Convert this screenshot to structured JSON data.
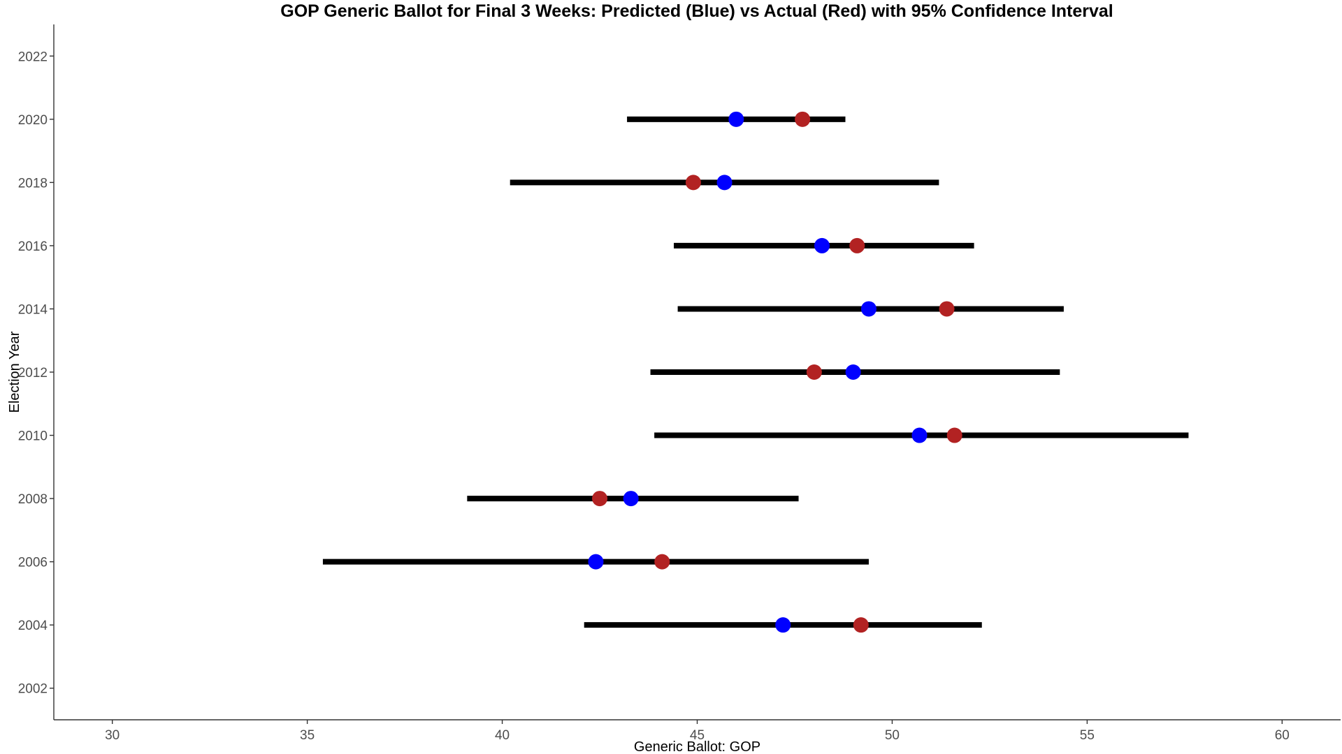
{
  "chart_data": {
    "type": "scatter",
    "title": "GOP Generic Ballot for Final 3 Weeks: Predicted (Blue) vs Actual (Red) with 95% Confidence Interval",
    "xlabel": "Generic Ballot: GOP",
    "ylabel": "Election Year",
    "xlim": [
      28.5,
      61.5
    ],
    "ylim": [
      2001,
      2023
    ],
    "x_ticks": [
      30,
      35,
      40,
      45,
      50,
      55,
      60
    ],
    "y_ticks": [
      2002,
      2004,
      2006,
      2008,
      2010,
      2012,
      2014,
      2016,
      2018,
      2020,
      2022
    ],
    "grid": false,
    "colors": {
      "predicted": "#0000ff",
      "actual": "#b22222",
      "interval": "#000000",
      "axis": "#333333"
    },
    "series": [
      {
        "name": "Predicted (Blue)",
        "points": [
          {
            "year": 2004,
            "value": 47.2
          },
          {
            "year": 2006,
            "value": 42.4
          },
          {
            "year": 2008,
            "value": 43.3
          },
          {
            "year": 2010,
            "value": 50.7
          },
          {
            "year": 2012,
            "value": 49.0
          },
          {
            "year": 2014,
            "value": 49.4
          },
          {
            "year": 2016,
            "value": 48.2
          },
          {
            "year": 2018,
            "value": 45.7
          },
          {
            "year": 2020,
            "value": 46.0
          }
        ]
      },
      {
        "name": "Actual (Red)",
        "points": [
          {
            "year": 2004,
            "value": 49.2
          },
          {
            "year": 2006,
            "value": 44.1
          },
          {
            "year": 2008,
            "value": 42.5
          },
          {
            "year": 2010,
            "value": 51.6
          },
          {
            "year": 2012,
            "value": 48.0
          },
          {
            "year": 2014,
            "value": 51.4
          },
          {
            "year": 2016,
            "value": 49.1
          },
          {
            "year": 2018,
            "value": 44.9
          },
          {
            "year": 2020,
            "value": 47.7
          }
        ]
      }
    ],
    "intervals": [
      {
        "year": 2004,
        "low": 42.1,
        "high": 52.3
      },
      {
        "year": 2006,
        "low": 35.4,
        "high": 49.4
      },
      {
        "year": 2008,
        "low": 39.1,
        "high": 47.6
      },
      {
        "year": 2010,
        "low": 43.9,
        "high": 57.6
      },
      {
        "year": 2012,
        "low": 43.8,
        "high": 54.3
      },
      {
        "year": 2014,
        "low": 44.5,
        "high": 54.4
      },
      {
        "year": 2016,
        "low": 44.4,
        "high": 52.1
      },
      {
        "year": 2018,
        "low": 40.2,
        "high": 51.2
      },
      {
        "year": 2020,
        "low": 43.2,
        "high": 48.8
      }
    ]
  }
}
